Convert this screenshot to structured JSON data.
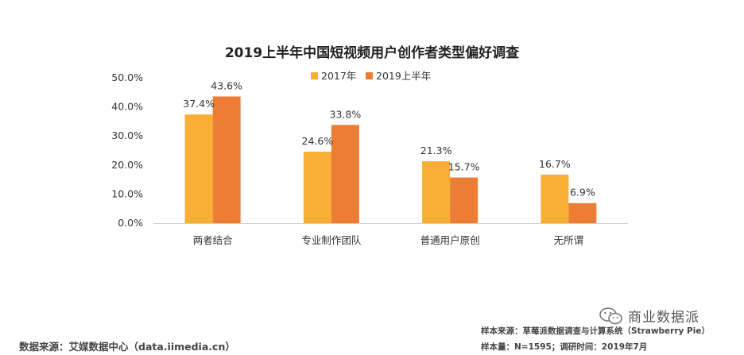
{
  "chart_data": {
    "type": "bar",
    "title": "2019上半年中国短视频用户创作者类型偏好调查",
    "categories": [
      "两者结合",
      "专业制作团队",
      "普通用户原创",
      "无所谓"
    ],
    "series": [
      {
        "name": "2017年",
        "values": [
          37.4,
          24.6,
          21.3,
          16.7
        ],
        "labels": [
          "37.4%",
          "24.6%",
          "21.3%",
          "16.7%"
        ],
        "color": "#F9AE35"
      },
      {
        "name": "2019上半年",
        "values": [
          43.6,
          33.8,
          15.7,
          6.9
        ],
        "labels": [
          "43.6%",
          "33.8%",
          "15.7%",
          "6.9%"
        ],
        "color": "#EB7E34"
      }
    ],
    "ylim": [
      0,
      50
    ],
    "yticks": [
      0,
      10,
      20,
      30,
      40,
      50
    ],
    "ytick_labels": [
      "0.0%",
      "10.0%",
      "20.0%",
      "30.0%",
      "40.0%",
      "50.0%"
    ],
    "xlabel": "",
    "ylabel": "",
    "legend": "top-center",
    "grid": false
  },
  "footer": {
    "source_left": "数据来源：艾媒数据中心（data.iimedia.cn）",
    "source_right_line1": "样本来源：草莓派数据调查与计算系统（Strawberry Pie）",
    "source_right_line2": "样本量：N=1595；调研时间：2019年7月"
  },
  "watermark": {
    "text": "商业数据派",
    "icon": "wechat-icon"
  }
}
